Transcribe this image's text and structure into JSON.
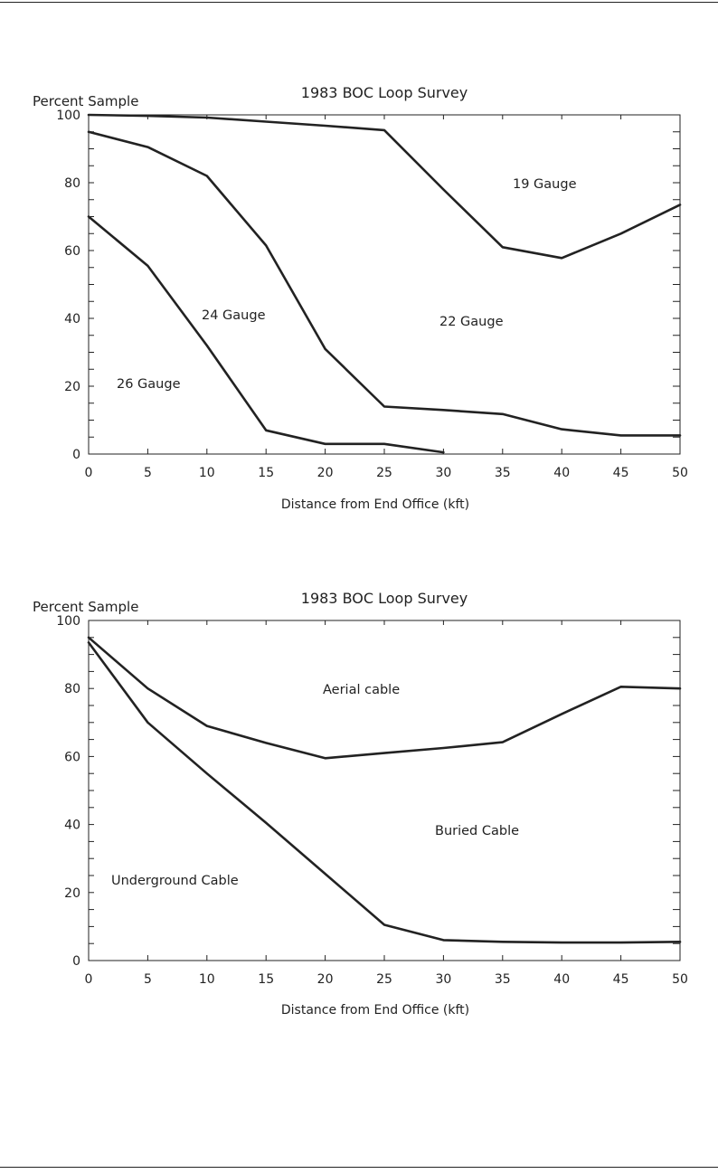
{
  "chart_data": [
    {
      "type": "line",
      "title": "1983 BOC Loop Survey",
      "xlabel": "Distance from End Office (kft)",
      "ylabel": "Percent Sample",
      "xlim": [
        0,
        50
      ],
      "ylim": [
        0,
        100
      ],
      "x_ticks": [
        "0",
        "5",
        "10",
        "15",
        "20",
        "25",
        "30",
        "35",
        "40",
        "45",
        "50"
      ],
      "y_ticks": [
        "0",
        "20",
        "40",
        "60",
        "80",
        "100"
      ],
      "grid": false,
      "series": [
        {
          "name": "19 Gauge boundary",
          "x": [
            0,
            5,
            10,
            15,
            20,
            25,
            30,
            35,
            40,
            45,
            50
          ],
          "y": [
            100,
            99.7,
            99.2,
            98,
            96.8,
            95.5,
            78,
            61,
            57.8,
            65,
            73.5
          ]
        },
        {
          "name": "22 Gauge boundary",
          "x": [
            0,
            5,
            10,
            15,
            20,
            25,
            30,
            35,
            40,
            45,
            50
          ],
          "y": [
            95,
            90.5,
            82,
            61.5,
            31,
            14,
            13,
            11.8,
            7.3,
            5.5,
            5.5
          ]
        },
        {
          "name": "24 Gauge boundary",
          "x": [
            0,
            5,
            10,
            15,
            20,
            25,
            30
          ],
          "y": [
            70,
            55.5,
            32,
            7,
            3,
            3,
            0.5
          ]
        }
      ],
      "annotations": [
        "19 Gauge",
        "22 Gauge",
        "24 Gauge",
        "26 Gauge"
      ]
    },
    {
      "type": "line",
      "title": "1983 BOC Loop Survey",
      "xlabel": "Distance from End Office (kft)",
      "ylabel": "Percent Sample",
      "xlim": [
        0,
        50
      ],
      "ylim": [
        0,
        100
      ],
      "x_ticks": [
        "0",
        "5",
        "10",
        "15",
        "20",
        "25",
        "30",
        "35",
        "40",
        "45",
        "50"
      ],
      "y_ticks": [
        "0",
        "20",
        "40",
        "60",
        "80",
        "100"
      ],
      "grid": false,
      "series": [
        {
          "name": "Aerial cable boundary",
          "x": [
            0,
            5,
            10,
            15,
            20,
            25,
            30,
            35,
            40,
            45,
            50
          ],
          "y": [
            95,
            80,
            69,
            64,
            59.5,
            61,
            62.5,
            64.2,
            72.5,
            80.5,
            80
          ]
        },
        {
          "name": "Buried cable boundary",
          "x": [
            0,
            5,
            10,
            15,
            20,
            25,
            30,
            35,
            40,
            45,
            50
          ],
          "y": [
            93.5,
            70,
            55,
            40.5,
            25.5,
            10.5,
            6,
            5.5,
            5.3,
            5.3,
            5.5
          ]
        }
      ],
      "annotations": [
        "Aerial cable",
        "Buried Cable",
        "Underground Cable"
      ]
    }
  ]
}
